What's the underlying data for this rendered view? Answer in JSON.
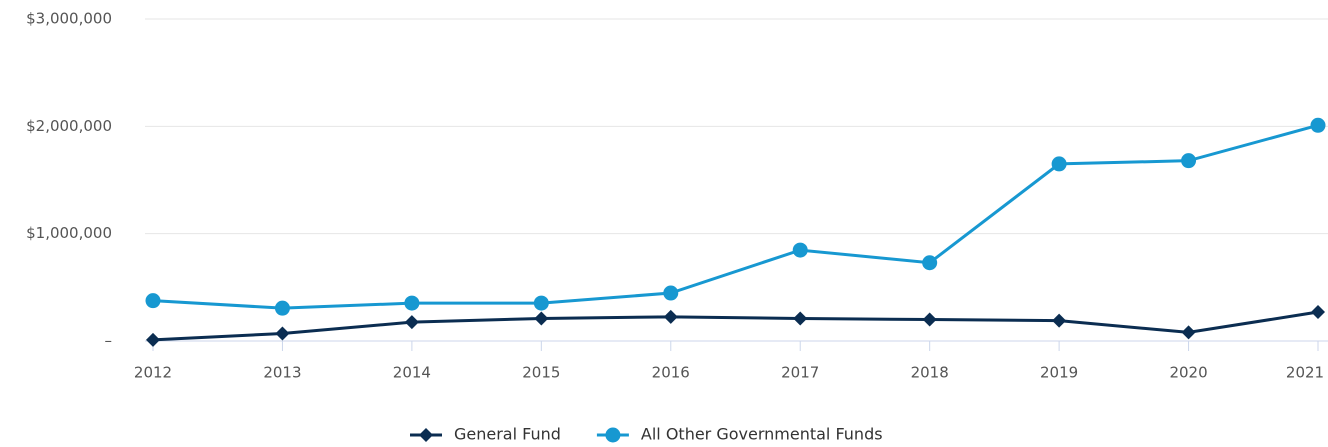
{
  "chart_data": {
    "type": "line",
    "categories": [
      "2012",
      "2013",
      "2014",
      "2015",
      "2016",
      "2017",
      "2018",
      "2019",
      "2020",
      "2021"
    ],
    "series": [
      {
        "name": "General Fund",
        "color": "#0b2d51",
        "marker": "diamond",
        "values": [
          10000,
          70000,
          176000,
          210000,
          225000,
          210000,
          200000,
          190000,
          80000,
          270000
        ]
      },
      {
        "name": "All Other Governmental Funds",
        "color": "#1798d1",
        "marker": "circle",
        "values": [
          376000,
          306000,
          353000,
          353000,
          447000,
          847000,
          729000,
          1650000,
          1680000,
          2010000
        ]
      }
    ],
    "ylim": [
      0,
      3000000
    ],
    "yticks": [
      {
        "value": 0,
        "label": "–"
      },
      {
        "value": 1000000,
        "label": "$1,000,000"
      },
      {
        "value": 2000000,
        "label": "$2,000,000"
      },
      {
        "value": 3000000,
        "label": "$3,000,000"
      }
    ],
    "grid": true,
    "legend": "bottom"
  }
}
